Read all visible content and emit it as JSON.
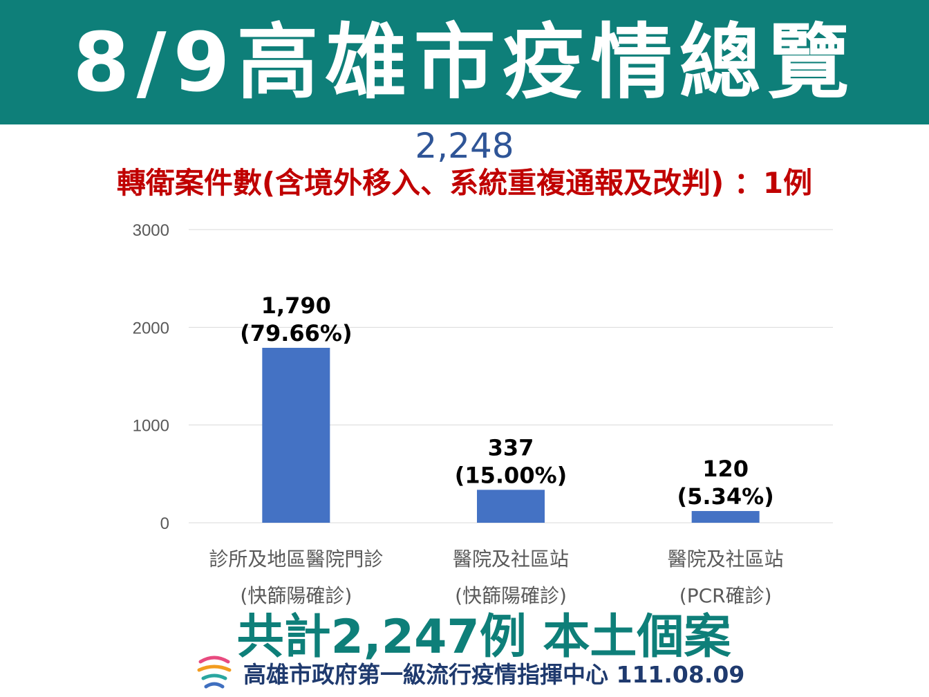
{
  "header": {
    "title": "8/9高雄市疫情總覽"
  },
  "summary": {
    "total_top": "2,248",
    "transfer_note": "轉衛案件數(含境外移入、系統重複通報及改判) ：1例",
    "grand_total": "共計2,247例 本土個案"
  },
  "footer": {
    "org": "高雄市政府第一級流行疫情指揮中心 111.08.09",
    "logo_icon": "kaohsiung-logo-icon"
  },
  "colors": {
    "banner": "#0e7f79",
    "bar": "#4472c4",
    "total_blue": "#2f5597",
    "note_red": "#c00000"
  },
  "chart_data": {
    "type": "bar",
    "categories": [
      [
        "診所及地區醫院門診",
        "(快篩陽確診)"
      ],
      [
        "醫院及社區站",
        "(快篩陽確診)"
      ],
      [
        "醫院及社區站",
        "(PCR確診)"
      ]
    ],
    "values": [
      1790,
      337,
      120
    ],
    "data_labels": [
      [
        "1,790",
        "(79.66%)"
      ],
      [
        "337",
        "(15.00%)"
      ],
      [
        "120",
        "(5.34%)"
      ]
    ],
    "ylim": [
      0,
      3000
    ],
    "yticks": [
      0,
      1000,
      2000,
      3000
    ],
    "grid": true,
    "legend": "none"
  }
}
